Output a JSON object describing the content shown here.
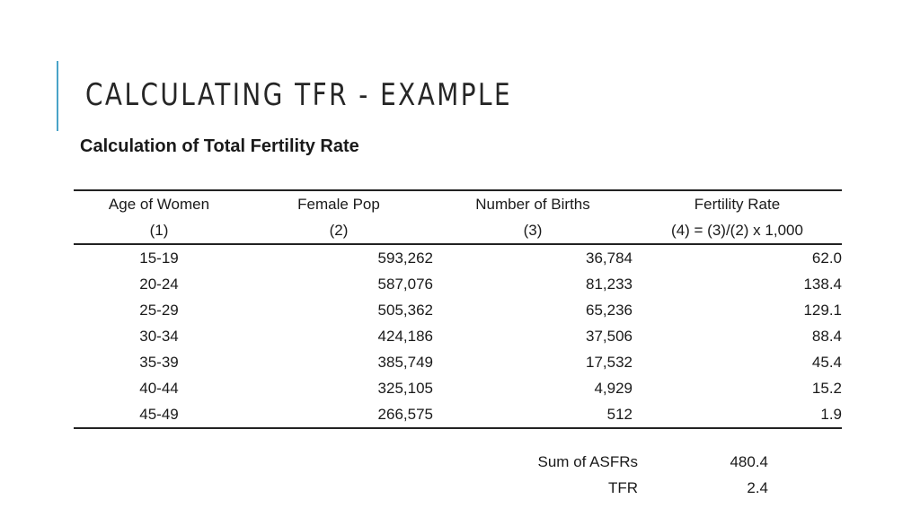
{
  "title": "CALCULATING TFR - EXAMPLE",
  "subtitle": "Calculation of Total Fertility Rate",
  "accent_color": "#4aa3c8",
  "table": {
    "headers": [
      "Age of Women",
      "Female Pop",
      "Number of Births",
      "Fertility Rate"
    ],
    "subheaders": [
      "(1)",
      "(2)",
      "(3)",
      "(4) = (3)/(2) x 1,000"
    ],
    "rows": [
      {
        "age": "15-19",
        "pop": "593,262",
        "births": "36,784",
        "rate": "62.0"
      },
      {
        "age": "20-24",
        "pop": "587,076",
        "births": "81,233",
        "rate": "138.4"
      },
      {
        "age": "25-29",
        "pop": "505,362",
        "births": "65,236",
        "rate": "129.1"
      },
      {
        "age": "30-34",
        "pop": "424,186",
        "births": "37,506",
        "rate": "88.4"
      },
      {
        "age": "35-39",
        "pop": "385,749",
        "births": "17,532",
        "rate": "45.4"
      },
      {
        "age": "40-44",
        "pop": "325,105",
        "births": "4,929",
        "rate": "15.2"
      },
      {
        "age": "45-49",
        "pop": "266,575",
        "births": "512",
        "rate": "1.9"
      }
    ]
  },
  "summary": {
    "sum_label": "Sum of ASFRs",
    "sum_value": "480.4",
    "tfr_label": "TFR",
    "tfr_value": "2.4"
  }
}
